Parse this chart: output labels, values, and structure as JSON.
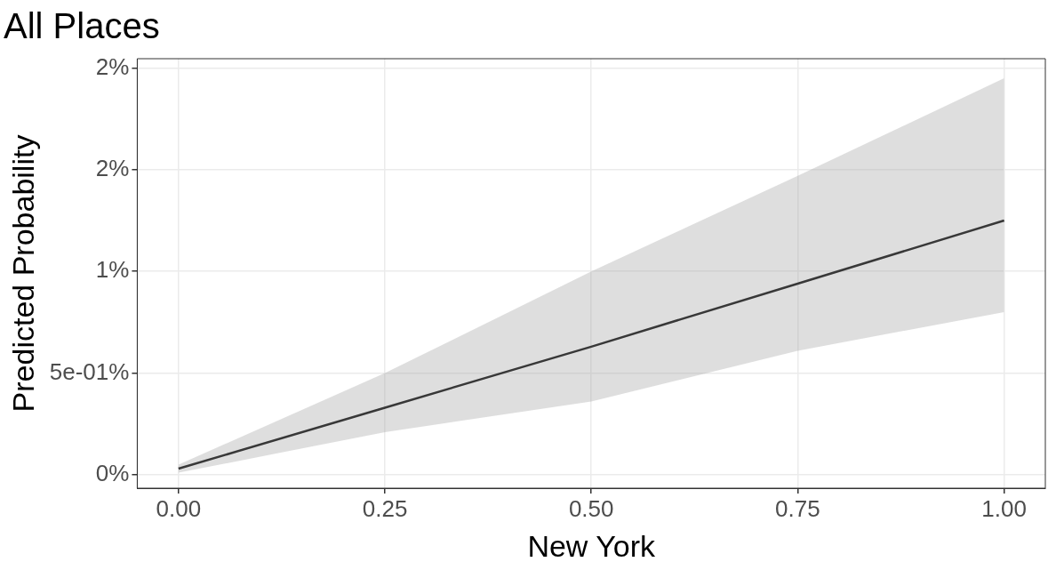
{
  "chart_data": {
    "type": "line",
    "title": "All Places",
    "xlabel": "New York",
    "ylabel": "Predicted Probability",
    "x": [
      0,
      0.25,
      0.5,
      0.75,
      1
    ],
    "series": [
      {
        "color": "#000000",
        "values": [
          0.03,
          0.33,
          0.63,
          0.94,
          1.25
        ],
        "lower": [
          0.01,
          0.21,
          0.36,
          0.61,
          0.8
        ],
        "upper": [
          0.05,
          0.5,
          1.0,
          1.47,
          1.95
        ]
      }
    ],
    "xlim": [
      -0.05,
      1.05
    ],
    "xticks": [
      {
        "value": 0,
        "label": "0.00"
      },
      {
        "value": 0.25,
        "label": "0.25"
      },
      {
        "value": 0.5,
        "label": "0.50"
      },
      {
        "value": 0.75,
        "label": "0.75"
      },
      {
        "value": 1,
        "label": "1.00"
      }
    ],
    "ylim": [
      -0.066,
      2.046
    ],
    "yticks": [
      {
        "value": 0,
        "label": "0%"
      },
      {
        "value": 0.5,
        "label": "5e-01%"
      },
      {
        "value": 1,
        "label": "1%"
      },
      {
        "value": 1.5,
        "label": "2%"
      },
      {
        "value": 2,
        "label": "2%"
      }
    ],
    "grid": true,
    "legend": false,
    "marker": "none",
    "line_style": "solid"
  }
}
